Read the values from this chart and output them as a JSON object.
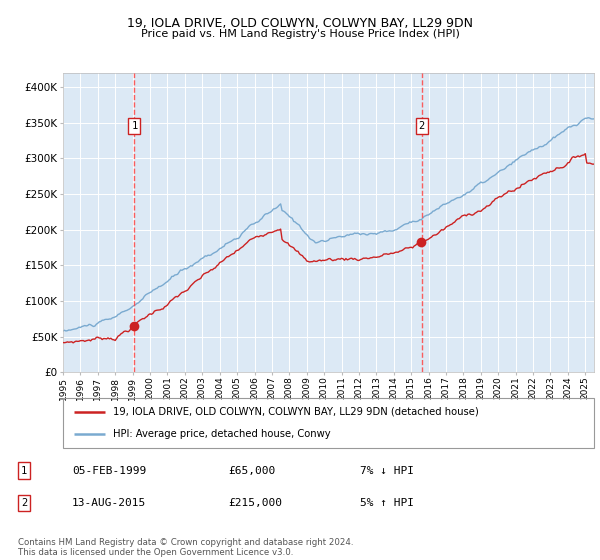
{
  "title1": "19, IOLA DRIVE, OLD COLWYN, COLWYN BAY, LL29 9DN",
  "title2": "Price paid vs. HM Land Registry's House Price Index (HPI)",
  "legend_line1": "19, IOLA DRIVE, OLD COLWYN, COLWYN BAY, LL29 9DN (detached house)",
  "legend_line2": "HPI: Average price, detached house, Conwy",
  "annotation1_label": "1",
  "annotation1_date": "05-FEB-1999",
  "annotation1_price": "£65,000",
  "annotation1_hpi": "7% ↓ HPI",
  "annotation2_label": "2",
  "annotation2_date": "13-AUG-2015",
  "annotation2_price": "£215,000",
  "annotation2_hpi": "5% ↑ HPI",
  "footer": "Contains HM Land Registry data © Crown copyright and database right 2024.\nThis data is licensed under the Open Government Licence v3.0.",
  "sale1_year": 1999.1,
  "sale1_price": 65000,
  "sale2_year": 2015.6,
  "sale2_price": 215000,
  "hpi_color": "#7aaad0",
  "price_color": "#cc2222",
  "marker_color": "#cc2222",
  "vline_color": "#ff4444",
  "bg_color": "#dce9f5",
  "grid_color": "#ffffff",
  "ylim": [
    0,
    420000
  ],
  "yticks": [
    0,
    50000,
    100000,
    150000,
    200000,
    250000,
    300000,
    350000,
    400000
  ],
  "ytick_labels": [
    "£0",
    "£50K",
    "£100K",
    "£150K",
    "£200K",
    "£250K",
    "£300K",
    "£350K",
    "£400K"
  ],
  "xlim_start": 1995.0,
  "xlim_end": 2025.5,
  "title1_fontsize": 9.0,
  "title2_fontsize": 8.0
}
